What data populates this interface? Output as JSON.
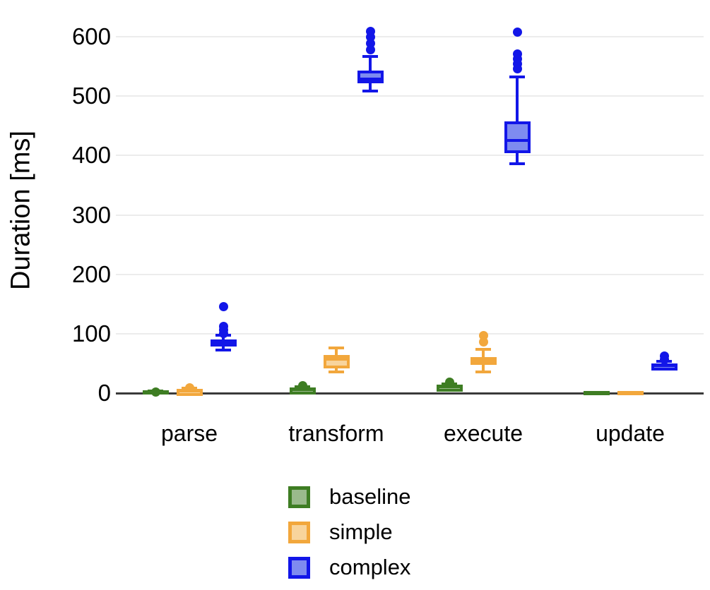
{
  "chart_data": {
    "type": "boxplot",
    "title": "",
    "xlabel": "",
    "ylabel": "Duration [ms]",
    "categories": [
      "parse",
      "transform",
      "execute",
      "update"
    ],
    "yticks": [
      0,
      100,
      200,
      300,
      400,
      500,
      600
    ],
    "ylim": [
      0,
      620
    ],
    "grid": "horizontal-gridlines",
    "legend_position": "bottom-center",
    "axis_color": "#3a3a3a",
    "gridline_color": "#ececec",
    "series": [
      {
        "name": "baseline",
        "stroke": "#3e7d23",
        "fill": "#9aba8c",
        "boxes": [
          {
            "category": "parse",
            "whisker_low": 0,
            "q1": 0.5,
            "median": 1,
            "q3": 2,
            "whisker_high": 3,
            "outliers": [
              2
            ]
          },
          {
            "category": "transform",
            "whisker_low": 2,
            "q1": 4,
            "median": 6,
            "q3": 9,
            "whisker_high": 11,
            "outliers": [
              13
            ]
          },
          {
            "category": "execute",
            "whisker_low": 5,
            "q1": 8,
            "median": 11,
            "q3": 14,
            "whisker_high": 16,
            "outliers": [
              19
            ]
          },
          {
            "category": "update",
            "whisker_low": 0,
            "q1": 0,
            "median": 0.5,
            "q3": 1,
            "whisker_high": 1,
            "outliers": []
          }
        ]
      },
      {
        "name": "simple",
        "stroke": "#f2a73c",
        "fill": "#f8d49c",
        "boxes": [
          {
            "category": "parse",
            "whisker_low": 0,
            "q1": 2,
            "median": 4,
            "q3": 7,
            "whisker_high": 8,
            "outliers": [
              9
            ]
          },
          {
            "category": "transform",
            "whisker_low": 36,
            "q1": 42,
            "median": 57,
            "q3": 64,
            "whisker_high": 76,
            "outliers": []
          },
          {
            "category": "execute",
            "whisker_low": 36,
            "q1": 48,
            "median": 54,
            "q3": 61,
            "whisker_high": 74,
            "outliers": [
              86,
              97
            ]
          },
          {
            "category": "update",
            "whisker_low": 0,
            "q1": 0,
            "median": 0.5,
            "q3": 1,
            "whisker_high": 1,
            "outliers": []
          }
        ]
      },
      {
        "name": "complex",
        "stroke": "#1216e8",
        "fill": "#7e8bf0",
        "boxes": [
          {
            "category": "parse",
            "whisker_low": 72,
            "q1": 80,
            "median": 84,
            "q3": 90,
            "whisker_high": 97,
            "outliers": [
              100,
              106,
              112,
              146
            ]
          },
          {
            "category": "transform",
            "whisker_low": 508,
            "q1": 521,
            "median": 529,
            "q3": 543,
            "whisker_high": 567,
            "outliers": [
              578,
              589,
              600,
              609
            ]
          },
          {
            "category": "execute",
            "whisker_low": 386,
            "q1": 404,
            "median": 425,
            "q3": 457,
            "whisker_high": 532,
            "outliers": [
              546,
              554,
              562,
              571,
              608
            ]
          },
          {
            "category": "update",
            "whisker_low": 40,
            "q1": 42,
            "median": 46,
            "q3": 50,
            "whisker_high": 53,
            "outliers": [
              57,
              62
            ]
          }
        ]
      }
    ]
  }
}
